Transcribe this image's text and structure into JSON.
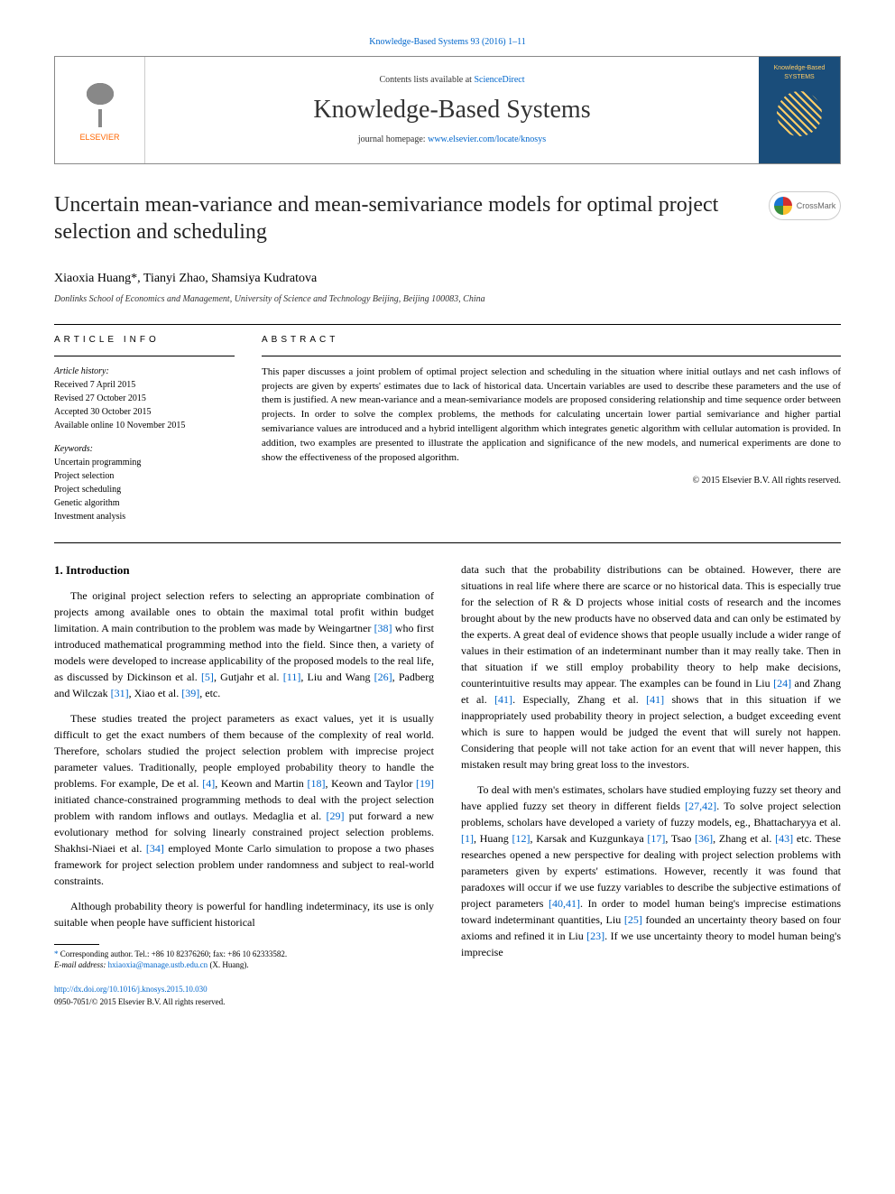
{
  "journal_citation": "Knowledge-Based Systems 93 (2016) 1–11",
  "header": {
    "contents_prefix": "Contents lists available at ",
    "contents_link": "ScienceDirect",
    "journal_name": "Knowledge-Based Systems",
    "homepage_prefix": "journal homepage: ",
    "homepage_link": "www.elsevier.com/locate/knosys",
    "publisher_label": "ELSEVIER",
    "cover_text": "Knowledge-Based SYSTEMS"
  },
  "crossmark_label": "CrossMark",
  "title": "Uncertain mean-variance and mean-semivariance models for optimal project selection and scheduling",
  "authors": "Xiaoxia Huang*, Tianyi Zhao, Shamsiya Kudratova",
  "affiliation": "Donlinks School of Economics and Management, University of Science and Technology Beijing, Beijing 100083, China",
  "article_info": {
    "heading": "ARTICLE INFO",
    "history_label": "Article history:",
    "received": "Received 7 April 2015",
    "revised": "Revised 27 October 2015",
    "accepted": "Accepted 30 October 2015",
    "online": "Available online 10 November 2015",
    "keywords_label": "Keywords:",
    "keywords": [
      "Uncertain programming",
      "Project selection",
      "Project scheduling",
      "Genetic algorithm",
      "Investment analysis"
    ]
  },
  "abstract": {
    "heading": "ABSTRACT",
    "text": "This paper discusses a joint problem of optimal project selection and scheduling in the situation where initial outlays and net cash inflows of projects are given by experts' estimates due to lack of historical data. Uncertain variables are used to describe these parameters and the use of them is justified. A new mean-variance and a mean-semivariance models are proposed considering relationship and time sequence order between projects. In order to solve the complex problems, the methods for calculating uncertain lower partial semivariance and higher partial semivariance values are introduced and a hybrid intelligent algorithm which integrates genetic algorithm with cellular automation is provided. In addition, two examples are presented to illustrate the application and significance of the new models, and numerical experiments are done to show the effectiveness of the proposed algorithm.",
    "copyright": "© 2015 Elsevier B.V. All rights reserved."
  },
  "section1_heading": "1. Introduction",
  "col_left": {
    "p1a": "The original project selection refers to selecting an appropriate combination of projects among available ones to obtain the maximal total profit within budget limitation. A main contribution to the problem was made by Weingartner ",
    "r38": "[38]",
    "p1b": " who first introduced mathematical programming method into the field. Since then, a variety of models were developed to increase applicability of the proposed models to the real life, as discussed by Dickinson et al. ",
    "r5": "[5]",
    "p1c": ", Gutjahr et al. ",
    "r11": "[11]",
    "p1d": ", Liu and Wang ",
    "r26": "[26]",
    "p1e": ", Padberg and Wilczak ",
    "r31": "[31]",
    "p1f": ", Xiao et al. ",
    "r39": "[39]",
    "p1g": ", etc.",
    "p2a": "These studies treated the project parameters as exact values, yet it is usually difficult to get the exact numbers of them because of the complexity of real world. Therefore, scholars studied the project selection problem with imprecise project parameter values. Traditionally, people employed probability theory to handle the problems. For example, De et al. ",
    "r4": "[4]",
    "p2b": ", Keown and Martin ",
    "r18": "[18]",
    "p2c": ", Keown and Taylor ",
    "r19": "[19]",
    "p2d": " initiated chance-constrained programming methods to deal with the project selection problem with random inflows and outlays. Medaglia et al. ",
    "r29": "[29]",
    "p2e": " put forward a new evolutionary method for solving linearly constrained project selection problems. Shakhsi-Niaei et al. ",
    "r34": "[34]",
    "p2f": " employed Monte Carlo simulation to propose a two phases framework for project selection problem under randomness and subject to real-world constraints.",
    "p3": "Although probability theory is powerful for handling indeterminacy, its use is only suitable when people have sufficient historical"
  },
  "col_right": {
    "p1a": "data such that the probability distributions can be obtained. However, there are situations in real life where there are scarce or no historical data. This is especially true for the selection of R & D projects whose initial costs of research and the incomes brought about by the new products have no observed data and can only be estimated by the experts. A great deal of evidence shows that people usually include a wider range of values in their estimation of an indeterminant number than it may really take. Then in that situation if we still employ probability theory to help make decisions, counterintuitive results may appear. The examples can be found in Liu ",
    "r24": "[24]",
    "p1b": " and Zhang et al. ",
    "r41a": "[41]",
    "p1c": ". Especially, Zhang et al. ",
    "r41b": "[41]",
    "p1d": " shows that in this situation if we inappropriately used probability theory in project selection, a budget exceeding event which is sure to happen would be judged the event that will surely not happen. Considering that people will not take action for an event that will never happen, this mistaken result may bring great loss to the investors.",
    "p2a": "To deal with men's estimates, scholars have studied employing fuzzy set theory and have applied fuzzy set theory in different fields ",
    "r2742": "[27,42]",
    "p2b": ". To solve project selection problems, scholars have developed a variety of fuzzy models, eg., Bhattacharyya et al. ",
    "r1": "[1]",
    "p2c": ", Huang ",
    "r12": "[12]",
    "p2d": ", Karsak and Kuzgunkaya ",
    "r17": "[17]",
    "p2e": ", Tsao ",
    "r36": "[36]",
    "p2f": ", Zhang et al. ",
    "r43": "[43]",
    "p2g": " etc. These researches opened a new perspective for dealing with project selection problems with parameters given by experts' estimations. However, recently it was found that paradoxes will occur if we use fuzzy variables to describe the subjective estimations of project parameters ",
    "r4041": "[40,41]",
    "p2h": ". In order to model human being's imprecise estimations toward indeterminant quantities, Liu ",
    "r25": "[25]",
    "p2i": " founded an uncertainty theory based on four axioms and refined it in Liu ",
    "r23": "[23]",
    "p2j": ". If we use uncertainty theory to model human being's imprecise"
  },
  "footnote": {
    "corr": "* Corresponding author. Tel.: +86 10 82376260; fax: +86 10 62333582.",
    "email_label": "E-mail address: ",
    "email": "hxiaoxia@manage.ustb.edu.cn",
    "email_suffix": " (X. Huang)."
  },
  "doi": {
    "link": "http://dx.doi.org/10.1016/j.knosys.2015.10.030",
    "issn_line": "0950-7051/© 2015 Elsevier B.V. All rights reserved."
  },
  "colors": {
    "link": "#0066cc",
    "text": "#000000",
    "elsevier_orange": "#ff6600",
    "cover_bg": "#1a4d7a",
    "cover_text": "#ffcc66"
  }
}
